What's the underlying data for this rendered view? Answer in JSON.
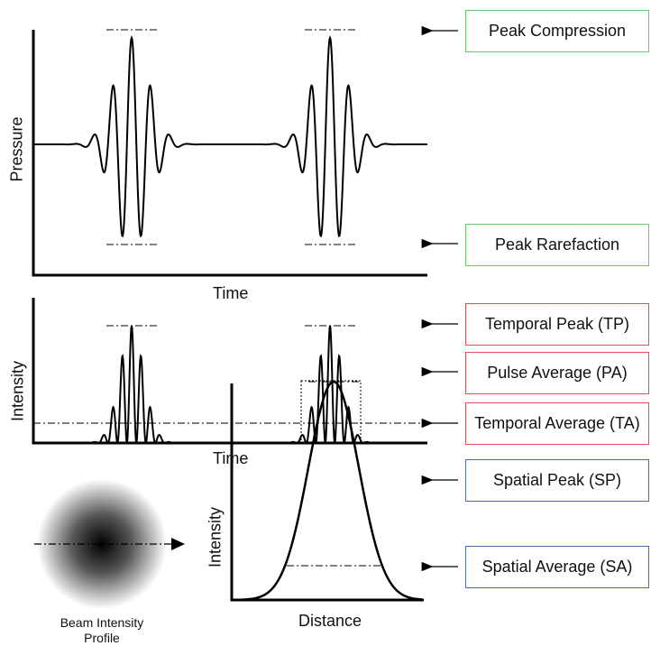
{
  "labels": {
    "peak_compression": "Peak Compression",
    "peak_rarefaction": "Peak Rarefaction",
    "temporal_peak": "Temporal Peak (TP)",
    "pulse_average": "Pulse Average (PA)",
    "temporal_average": "Temporal Average (TA)",
    "spatial_peak": "Spatial Peak (SP)",
    "spatial_average": "Spatial Average (SA)"
  },
  "axes": {
    "pressure_y": "Pressure",
    "pressure_x": "Time",
    "intensity_y": "Intensity",
    "intensity_x": "Time",
    "spatial_y": "Intensity",
    "spatial_x": "Distance"
  },
  "beam_caption_line1": "Beam Intensity",
  "beam_caption_line2": "Profile",
  "colors": {
    "pressure_boxes": "#6ac96c",
    "temporal_boxes": "#d9534f",
    "spatial_boxes": "#4a6bb5"
  }
}
